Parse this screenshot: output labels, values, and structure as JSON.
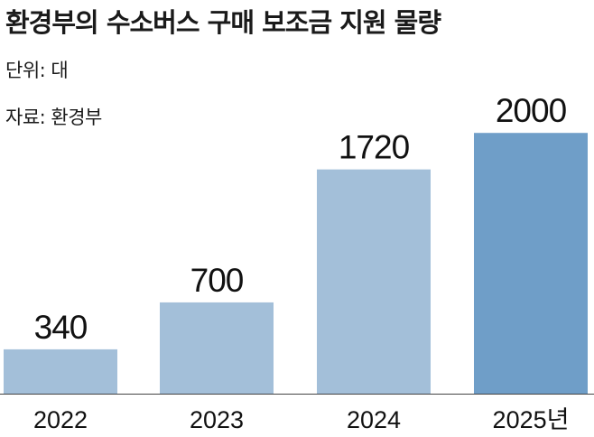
{
  "title": "환경부의 수소버스 구매 보조금 지원 물량",
  "unit": "단위: 대",
  "source": "자료: 환경부",
  "colors": {
    "bar": "#a3bfd9",
    "bar_highlight": "#6f9ec8",
    "axis": "#444444"
  },
  "chart_data": {
    "type": "bar",
    "categories": [
      "2022",
      "2023",
      "2024",
      "2025년"
    ],
    "values": [
      340,
      700,
      1720,
      2000
    ],
    "value_labels": [
      "340",
      "700",
      "1720",
      "2000"
    ],
    "highlight_index": 3,
    "xlabel": "",
    "ylabel": "",
    "ylim": [
      0,
      2050
    ]
  }
}
